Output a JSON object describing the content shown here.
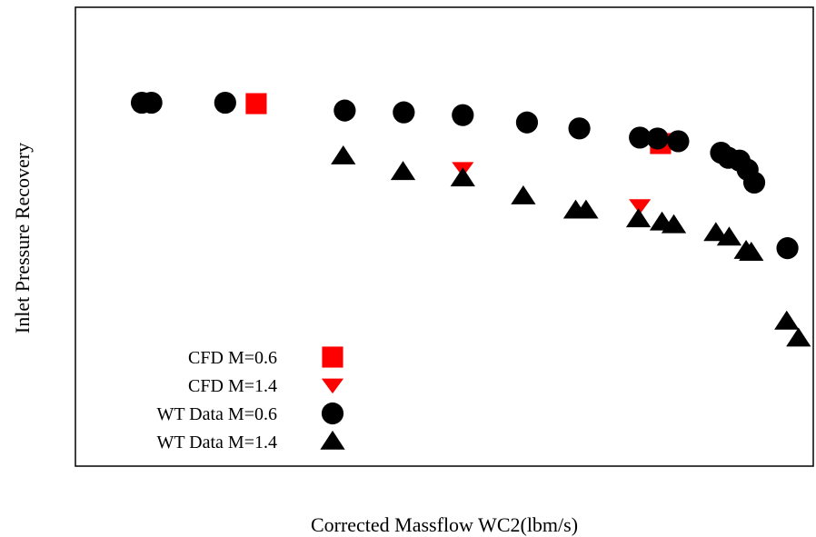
{
  "chart_data": {
    "type": "scatter",
    "title": "",
    "xlabel": "Corrected Massflow WC2(lbm/s)",
    "ylabel": "Inlet Pressure Recovery",
    "xlim": [
      0,
      100
    ],
    "ylim": [
      0,
      100
    ],
    "x_ticks": [],
    "y_ticks": [],
    "grid": false,
    "legend_position": "bottom-left",
    "series": [
      {
        "name": "CFD M=0.6",
        "marker": "square",
        "color": "#ff0000",
        "points": [
          [
            24.5,
            79
          ],
          [
            79.3,
            70.3
          ]
        ]
      },
      {
        "name": "CFD M=1.4",
        "marker": "triangle-down",
        "color": "#ff0000",
        "points": [
          [
            52.5,
            64.8
          ],
          [
            76.5,
            56.7
          ]
        ]
      },
      {
        "name": "WT Data M=0.6",
        "marker": "circle",
        "color": "#000000",
        "points": [
          [
            9,
            79.2
          ],
          [
            10.3,
            79.2
          ],
          [
            20.3,
            79.2
          ],
          [
            36.5,
            77.5
          ],
          [
            44.5,
            77.1
          ],
          [
            52.5,
            76.5
          ],
          [
            61.2,
            74.9
          ],
          [
            68.3,
            73.6
          ],
          [
            76.5,
            71.6
          ],
          [
            78.9,
            71.4
          ],
          [
            81.7,
            70.8
          ],
          [
            87.5,
            68.3
          ],
          [
            88.5,
            67.2
          ],
          [
            90,
            66.6
          ],
          [
            91.1,
            64.6
          ],
          [
            92,
            61.8
          ],
          [
            96.5,
            47.5
          ]
        ]
      },
      {
        "name": "WT Data M=1.4",
        "marker": "triangle-up",
        "color": "#000000",
        "points": [
          [
            36.3,
            67.5
          ],
          [
            44.4,
            64.1
          ],
          [
            52.5,
            62.7
          ],
          [
            60.7,
            58.8
          ],
          [
            67.8,
            55.7
          ],
          [
            69.2,
            55.7
          ],
          [
            76.3,
            53.8
          ],
          [
            79.5,
            53.1
          ],
          [
            81.1,
            52.5
          ],
          [
            86.8,
            50.8
          ],
          [
            88.6,
            49.8
          ],
          [
            90.9,
            46.9
          ],
          [
            91.6,
            46.5
          ],
          [
            96.4,
            31.5
          ],
          [
            98,
            27.8
          ]
        ]
      }
    ]
  }
}
